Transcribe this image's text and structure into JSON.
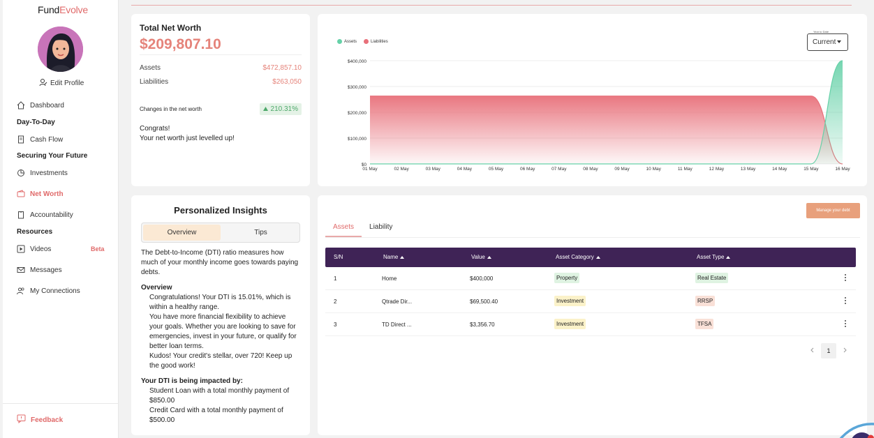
{
  "brand": {
    "name_a": "Fund",
    "name_b": "Evolve"
  },
  "profile": {
    "edit_label": "Edit Profile"
  },
  "sidebar": {
    "items": [
      {
        "label": "Dashboard",
        "icon": "home-icon"
      },
      {
        "section": "Day-To-Day"
      },
      {
        "label": "Cash Flow",
        "icon": "document-icon"
      },
      {
        "section": "Securing Your Future"
      },
      {
        "label": "Investments",
        "icon": "pie-chart-icon"
      },
      {
        "label": "Net Worth",
        "icon": "wallet-icon",
        "active": true
      },
      {
        "label": "Accountability",
        "icon": "clipboard-icon"
      },
      {
        "section": "Resources"
      },
      {
        "label": "Videos",
        "icon": "play-icon",
        "badge": "Beta"
      },
      {
        "label": "Messages",
        "icon": "mail-icon"
      },
      {
        "label": "My Connections",
        "icon": "people-icon"
      }
    ],
    "feedback_label": "Feedback"
  },
  "networth": {
    "title": "Total Net Worth",
    "value": "$209,807.10",
    "assets_label": "Assets",
    "assets_value": "$472,857.10",
    "liabilities_label": "Liabilities",
    "liabilities_value": "$263,050",
    "change_label": "Changes in the net worth",
    "change_value": "210.31%",
    "congrats_1": "Congrats!",
    "congrats_2": "Your net worth just levelled up!"
  },
  "chart": {
    "period_label": "Year to Date",
    "period_value": "Current"
  },
  "chart_data": {
    "type": "area",
    "x": [
      "01 May",
      "02 May",
      "03 May",
      "04 May",
      "05 May",
      "06 May",
      "07 May",
      "08 May",
      "09 May",
      "10 May",
      "11 May",
      "12 May",
      "13 May",
      "14 May",
      "15 May",
      "16 May"
    ],
    "series": [
      {
        "name": "Assets",
        "color": "#66d1a8",
        "values": [
          0,
          0,
          0,
          0,
          0,
          0,
          0,
          0,
          0,
          0,
          0,
          0,
          0,
          0,
          0,
          400000
        ]
      },
      {
        "name": "Liabilities",
        "color": "#e8707a",
        "values": [
          263050,
          263050,
          263050,
          263050,
          263050,
          263050,
          263050,
          263050,
          263050,
          263050,
          263050,
          263050,
          263050,
          263050,
          263050,
          0
        ]
      }
    ],
    "y_ticks": [
      "$0",
      "$100,000",
      "$200,000",
      "$300,000",
      "$400,000"
    ],
    "ylim": [
      0,
      400000
    ],
    "grid": true,
    "legend_position": "top-left"
  },
  "insights": {
    "title": "Personalized Insights",
    "tab_overview": "Overview",
    "tab_tips": "Tips",
    "intro": "The Debt-to-Income (DTI) ratio measures how much of your monthly income goes towards paying debts.",
    "overview_head": "Overview",
    "overview_1": "Congratulations! Your DTI is 15.01%, which is within a healthy range.",
    "overview_2": "You have more financial flexibility to achieve your goals. Whether you are looking to save for emergencies, invest in your future, or qualify for better loan terms.",
    "overview_3": "Kudos! Your credit's stellar, over 720! Keep up the good work!",
    "impact_head": "Your DTI is being impacted by:",
    "impact_1": "Student Loan with a total monthly payment of $850.00",
    "impact_2": "Credit Card with a total monthly payment of $500.00"
  },
  "table": {
    "manage_label": "Manage your debt",
    "tab_assets": "Assets",
    "tab_liability": "Liability",
    "headers": {
      "sn": "S/N",
      "name": "Name",
      "value": "Value",
      "category": "Asset Category",
      "type": "Asset Type"
    },
    "rows": [
      {
        "sn": "1",
        "name": "Home",
        "value": "$400,000",
        "category": "Property",
        "type": "Real Estate"
      },
      {
        "sn": "2",
        "name": "Qtrade Dir...",
        "value": "$69,500.40",
        "category": "Investment",
        "type": "RRSP"
      },
      {
        "sn": "3",
        "name": "TD Direct ...",
        "value": "$3,356.70",
        "category": "Investment",
        "type": "TFSA"
      }
    ],
    "page": "1"
  }
}
